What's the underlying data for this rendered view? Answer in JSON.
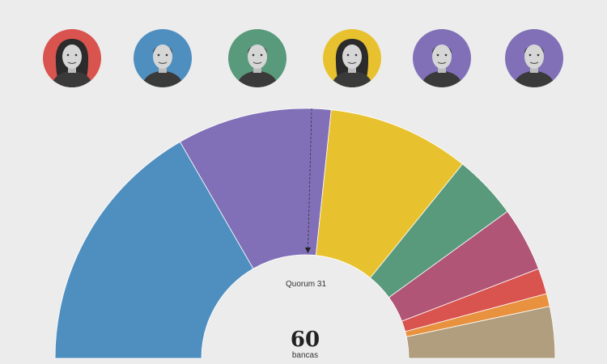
{
  "candidates": [
    {
      "icon": "woman-portrait-icon",
      "color": "#d9534f"
    },
    {
      "icon": "man-portrait-icon",
      "color": "#4f8fc0"
    },
    {
      "icon": "man-portrait-icon",
      "color": "#5a9a7c"
    },
    {
      "icon": "woman-portrait-icon",
      "color": "#e8c22e"
    },
    {
      "icon": "man-portrait-icon",
      "color": "#8170b8"
    },
    {
      "icon": "man-portrait-icon",
      "color": "#8170b8"
    }
  ],
  "chart_data": {
    "type": "pie",
    "subtype": "half-donut",
    "total": 60,
    "series": [
      {
        "value": 20,
        "color": "#4f8fc0"
      },
      {
        "value": 12,
        "color": "#8170b8"
      },
      {
        "value": 11,
        "color": "#e8c22e"
      },
      {
        "value": 5,
        "color": "#5a9a7c"
      },
      {
        "value": 5,
        "color": "#b05576"
      },
      {
        "value": 2,
        "color": "#d9534f"
      },
      {
        "value": 1,
        "color": "#e8913f"
      },
      {
        "value": 4,
        "color": "#b09e7e"
      }
    ],
    "quorum": {
      "label": "Quorum 31",
      "seat": 31
    }
  },
  "center": {
    "value": "60",
    "unit": "bancas"
  }
}
